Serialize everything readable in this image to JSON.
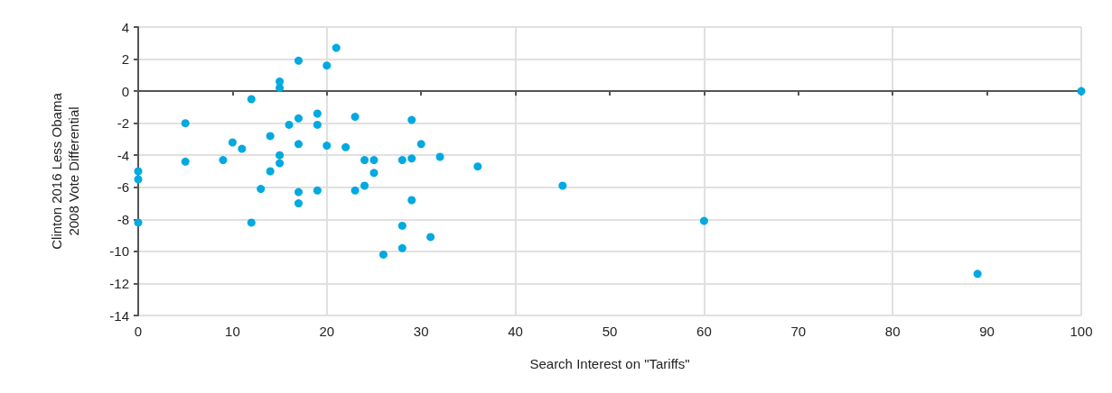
{
  "chart_data": {
    "type": "scatter",
    "xlabel": "Search Interest on \"Tariffs\"",
    "ylabel": "Clinton 2016 Less Obama\n2008 Vote Differential",
    "x": [
      0,
      0,
      0,
      5,
      5,
      9,
      10,
      11,
      12,
      12,
      13,
      14,
      14,
      15,
      15,
      15,
      15,
      16,
      17,
      17,
      17,
      17,
      17,
      19,
      19,
      19,
      20,
      20,
      21,
      22,
      23,
      23,
      24,
      24,
      25,
      25,
      26,
      28,
      28,
      28,
      29,
      29,
      29,
      30,
      31,
      32,
      36,
      45,
      60,
      89,
      100
    ],
    "values": [
      -5,
      -5.5,
      -8.2,
      -2,
      -4.4,
      -4.3,
      -3.2,
      -3.6,
      -0.5,
      -8.2,
      -6.1,
      -2.8,
      -5,
      0.6,
      0.2,
      -4,
      -4.5,
      -2.1,
      1.9,
      -1.7,
      -3.3,
      -6.3,
      -7,
      -1.4,
      -2.1,
      -6.2,
      1.6,
      -3.4,
      2.7,
      -3.5,
      -1.6,
      -6.2,
      -4.3,
      -5.9,
      -4.3,
      -5.1,
      -10.2,
      -4.3,
      -8.4,
      -9.8,
      -1.8,
      -4.2,
      -6.8,
      -3.3,
      -9.1,
      -4.1,
      -4.7,
      -5.9,
      -8.1,
      -11.4,
      0
    ],
    "color": "#00a9e0",
    "marker": "circle",
    "xlim": [
      0,
      100
    ],
    "xticks": [
      0,
      10,
      20,
      30,
      40,
      50,
      60,
      70,
      80,
      90,
      100
    ],
    "ylim": [
      -14,
      4
    ],
    "yticks": [
      -14,
      -12,
      -10,
      -8,
      -6,
      -4,
      -2,
      0,
      2,
      4
    ],
    "grid": true
  }
}
